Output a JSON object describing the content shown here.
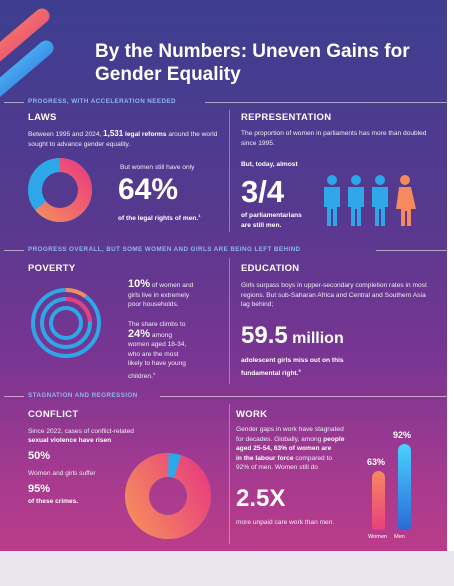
{
  "title": "By the Numbers: Uneven Gains for Gender Equality",
  "bands": {
    "progress": "PROGRESS, WITH ACCELERATION NEEDED",
    "overall": "PROGRESS OVERALL, BUT SOME WOMEN AND GIRLS ARE BEING LEFT BEHIND",
    "stagnation": "STAGNATION AND REGRESSION"
  },
  "laws": {
    "heading": "LAWS",
    "intro_a": "Between 1995 and 2024,",
    "intro_num": "1,531",
    "intro_b": "legal reforms",
    "intro_c": "around the world sought to advance gender equality.",
    "but": "But women still have only",
    "stat": "64%",
    "caption": "of the legal rights of men.",
    "fn": "1",
    "donut_value": 0.64
  },
  "representation": {
    "heading": "REPRESENTATION",
    "intro": "The proportion of women in parliaments has more than doubled since 1995.",
    "but": "But, today, almost",
    "stat": "3/4",
    "caption_a": "of parliamentarians",
    "caption_b": "are still men."
  },
  "poverty": {
    "heading": "POVERTY",
    "p1_num": "10%",
    "p1_a": "of women and",
    "p1_b": "girls live in extremely",
    "p1_c": "poor households.",
    "p2_a": "The share climbs to",
    "p2_num": "24%",
    "p2_b": "among",
    "p2_c": "women aged 18-34,",
    "p2_d": "who are the most",
    "p2_e": "likely to have young",
    "p2_f": "children.",
    "fn": "4",
    "ring_values": [
      0.1,
      0.24
    ]
  },
  "education": {
    "heading": "EDUCATION",
    "intro": "Girls surpass boys in upper-secondary completion rates in most regions. But sub-Saharan Africa and Central and Southern Asia lag behind;",
    "stat_num": "59.5",
    "stat_unit": "million",
    "caption_a": "adolescent girls miss out on this",
    "caption_b": "fundamental right.",
    "fn": "5"
  },
  "conflict": {
    "heading": "CONFLICT",
    "intro_a": "Since 2022, cases of conflict-related",
    "intro_b": "sexual violence have risen",
    "stat1": "50%",
    "mid": "Women and girls suffer",
    "stat2": "95%",
    "caption": "of these crimes.",
    "pie_value": 0.95
  },
  "work": {
    "heading": "WORK",
    "intro_a": "Gender gaps in work have stagnated",
    "intro_b": "for decades.  Globally, among",
    "intro_c": "people",
    "intro_d": "aged 25-54, 63% of women are",
    "intro_e": "in the labour force",
    "intro_f": "compared to",
    "intro_g": "92% of men. Women still do",
    "stat": "2.5X",
    "caption": "more unpaid care work than men."
  },
  "chart_data": {
    "type": "bar",
    "categories": [
      "Women",
      "Men"
    ],
    "values": [
      63,
      92
    ],
    "value_labels": [
      "63%",
      "92%"
    ],
    "ylim": [
      0,
      100
    ]
  },
  "colors": {
    "orange": "#f58a5e",
    "pink": "#e8407d",
    "blue": "#2ea7e8",
    "light_blue": "#8fb6f0"
  },
  "icons": [
    "person-icon-blue",
    "person-icon-blue",
    "person-icon-blue",
    "person-icon-orange"
  ]
}
